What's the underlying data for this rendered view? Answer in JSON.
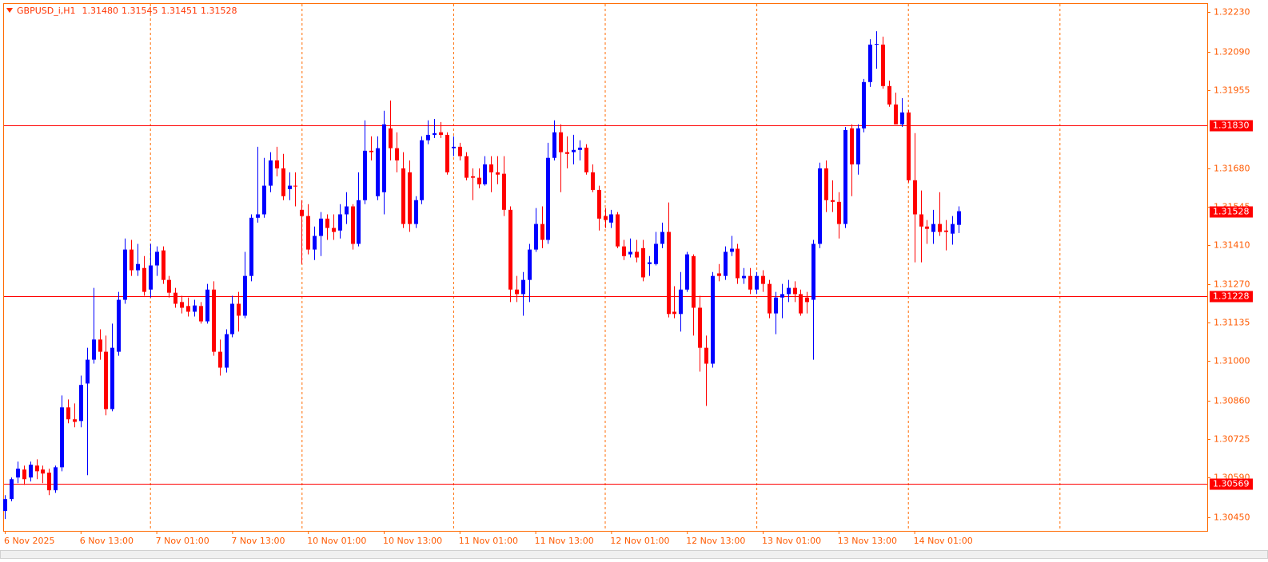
{
  "chart_data": {
    "type": "candlestick",
    "title": "GBPUSD_i,H1",
    "last_bar_labels": [
      "1.31480",
      "1.31545",
      "1.31451",
      "1.31528"
    ],
    "categories": [
      "6 Nov 2025",
      null,
      null,
      null,
      null,
      null,
      null,
      null,
      null,
      null,
      null,
      null,
      "6 Nov 13:00",
      null,
      null,
      null,
      null,
      null,
      null,
      null,
      null,
      null,
      null,
      null,
      "7 Nov 01:00",
      null,
      null,
      null,
      null,
      null,
      null,
      null,
      null,
      null,
      null,
      null,
      "7 Nov 13:00",
      null,
      null,
      null,
      null,
      null,
      null,
      null,
      null,
      null,
      null,
      null,
      "10 Nov 01:00",
      null,
      null,
      null,
      null,
      null,
      null,
      null,
      null,
      null,
      null,
      null,
      "10 Nov 13:00",
      null,
      null,
      null,
      null,
      null,
      null,
      null,
      null,
      null,
      null,
      null,
      "11 Nov 01:00",
      null,
      null,
      null,
      null,
      null,
      null,
      null,
      null,
      null,
      null,
      null,
      "11 Nov 13:00",
      null,
      null,
      null,
      null,
      null,
      null,
      null,
      null,
      null,
      null,
      null,
      "12 Nov 01:00",
      null,
      null,
      null,
      null,
      null,
      null,
      null,
      null,
      null,
      null,
      null,
      "12 Nov 13:00",
      null,
      null,
      null,
      null,
      null,
      null,
      null,
      null,
      null,
      null,
      null,
      "13 Nov 01:00",
      null,
      null,
      null,
      null,
      null,
      null,
      null,
      null,
      null,
      null,
      null,
      "13 Nov 13:00",
      null,
      null,
      null,
      null,
      null,
      null,
      null,
      null,
      null,
      null,
      null,
      "14 Nov 01:00",
      null,
      null,
      null,
      null,
      null,
      null,
      null
    ],
    "open": [
      1.30472,
      1.30514,
      1.3059,
      1.30618,
      1.3059,
      1.30632,
      1.30618,
      1.30607,
      1.30545,
      1.30626,
      1.30837,
      1.30795,
      1.30789,
      1.30921,
      1.31005,
      1.31076,
      1.31033,
      1.30831,
      1.31033,
      1.31216,
      1.31393,
      1.3132,
      1.31328,
      1.31252,
      1.31337,
      1.3139,
      1.31286,
      1.31241,
      1.31208,
      1.31194,
      1.31174,
      1.31194,
      1.3114,
      1.31252,
      1.31033,
      1.30977,
      1.31095,
      1.31202,
      1.3116,
      1.313,
      1.31505,
      1.31517,
      1.31618,
      1.31707,
      1.31679,
      1.31606,
      1.31618,
      1.31533,
      1.31511,
      1.31393,
      1.31441,
      1.31502,
      1.31469,
      1.3146,
      1.31517,
      1.31545,
      1.31413,
      1.31567,
      1.31741,
      1.31581,
      1.31595,
      1.3182,
      1.3175,
      1.31679,
      1.31665,
      1.31483,
      1.31567,
      1.31778,
      1.31797,
      1.31806,
      1.31797,
      1.3175,
      1.31755,
      1.31722,
      1.31651,
      1.31646,
      1.31623,
      1.31693,
      1.31665,
      1.3166,
      1.31533,
      1.31252,
      1.31236,
      1.31286,
      1.31393,
      1.31483,
      1.31427,
      1.31716,
      1.31806,
      1.31736,
      1.31736,
      1.31744,
      1.31752,
      1.31665,
      1.31603,
      1.31511,
      1.31488,
      1.31517,
      1.31404,
      1.31376,
      1.31385,
      1.31398,
      1.31342,
      1.31342,
      1.31413,
      1.31455,
      1.31174,
      1.31166,
      1.31252,
      1.3137,
      1.31188,
      1.31047,
      1.30991,
      1.31309,
      1.313,
      1.31385,
      1.31396,
      1.31292,
      1.313,
      1.31252,
      1.313,
      1.31272,
      1.31168,
      1.31224,
      1.31236,
      1.31258,
      1.31236,
      1.31224,
      1.31216,
      1.31413,
      1.31679,
      1.31567,
      1.31561,
      1.31483,
      1.3182,
      1.31693,
      1.3182,
      1.31983,
      1.32115,
      1.32115,
      1.31969,
      1.31904,
      1.31834,
      1.31876,
      1.31637,
      1.31517,
      1.31474,
      1.31455,
      1.31483,
      1.3146,
      1.31449,
      1.3148
    ],
    "high": [
      1.30528,
      1.3059,
      1.30646,
      1.30632,
      1.30646,
      1.30654,
      1.30632,
      1.30621,
      1.30632,
      1.30879,
      1.30865,
      1.30851,
      1.30949,
      1.31047,
      1.31258,
      1.31112,
      1.3109,
      1.31132,
      1.31244,
      1.31432,
      1.31427,
      1.31413,
      1.3137,
      1.31413,
      1.31404,
      1.31404,
      1.313,
      1.31258,
      1.3123,
      1.31224,
      1.31216,
      1.31208,
      1.31272,
      1.31281,
      1.31076,
      1.31112,
      1.3123,
      1.31244,
      1.31385,
      1.31517,
      1.31755,
      1.31716,
      1.31736,
      1.31755,
      1.3173,
      1.31665,
      1.31665,
      1.31567,
      1.31553,
      1.31474,
      1.31525,
      1.31517,
      1.31517,
      1.31553,
      1.31595,
      1.31553,
      1.31665,
      1.31848,
      1.31792,
      1.31792,
      1.31882,
      1.31918,
      1.31806,
      1.31736,
      1.31707,
      1.31581,
      1.31792,
      1.31848,
      1.31853,
      1.31842,
      1.31806,
      1.31792,
      1.31769,
      1.31736,
      1.31679,
      1.31679,
      1.31722,
      1.31722,
      1.31722,
      1.31722,
      1.31545,
      1.313,
      1.31314,
      1.31413,
      1.31539,
      1.31545,
      1.31769,
      1.31848,
      1.31834,
      1.31792,
      1.31797,
      1.31778,
      1.31764,
      1.31693,
      1.31618,
      1.31539,
      1.31533,
      1.31525,
      1.31427,
      1.31432,
      1.31427,
      1.31427,
      1.3137,
      1.31455,
      1.31488,
      1.31559,
      1.31264,
      1.31314,
      1.31385,
      1.31376,
      1.3123,
      1.3109,
      1.31314,
      1.31342,
      1.31404,
      1.31441,
      1.31413,
      1.31328,
      1.31328,
      1.31314,
      1.3132,
      1.31286,
      1.31244,
      1.31272,
      1.31286,
      1.31281,
      1.31252,
      1.31244,
      1.31427,
      1.31699,
      1.31707,
      1.31637,
      1.31595,
      1.31825,
      1.31834,
      1.31834,
      1.31994,
      1.32134,
      1.32162,
      1.32143,
      1.31988,
      1.31946,
      1.31926,
      1.31884,
      1.31803,
      1.31601,
      1.31497,
      1.31533,
      1.31595,
      1.31497,
      1.31511,
      1.31545
    ],
    "low": [
      1.30444,
      1.30506,
      1.3057,
      1.30564,
      1.30576,
      1.30584,
      1.3057,
      1.30528,
      1.30536,
      1.30612,
      1.30781,
      1.30767,
      1.30767,
      1.30598,
      1.30991,
      1.31005,
      1.30809,
      1.30823,
      1.31019,
      1.31202,
      1.313,
      1.313,
      1.3123,
      1.31224,
      1.313,
      1.31272,
      1.31224,
      1.31188,
      1.31168,
      1.31157,
      1.31157,
      1.31132,
      1.31132,
      1.31019,
      1.30949,
      1.3096,
      1.31084,
      1.31104,
      1.31151,
      1.31281,
      1.31488,
      1.31505,
      1.31595,
      1.31651,
      1.31567,
      1.31567,
      1.31545,
      1.31342,
      1.31376,
      1.31356,
      1.3137,
      1.31427,
      1.31427,
      1.31432,
      1.31483,
      1.31393,
      1.31404,
      1.31553,
      1.31707,
      1.31567,
      1.31517,
      1.31707,
      1.31665,
      1.31469,
      1.31455,
      1.31469,
      1.31553,
      1.31764,
      1.31786,
      1.31786,
      1.31657,
      1.31722,
      1.31707,
      1.31637,
      1.31567,
      1.31609,
      1.31618,
      1.31595,
      1.31623,
      1.31511,
      1.31208,
      1.31208,
      1.3116,
      1.31208,
      1.31385,
      1.31398,
      1.31413,
      1.31707,
      1.31595,
      1.31679,
      1.31693,
      1.31707,
      1.31657,
      1.31595,
      1.3146,
      1.31469,
      1.31469,
      1.31398,
      1.31356,
      1.31365,
      1.31348,
      1.31281,
      1.313,
      1.31337,
      1.31398,
      1.31154,
      1.31151,
      1.31104,
      1.31244,
      1.3109,
      1.30963,
      1.30842,
      1.30977,
      1.31281,
      1.31286,
      1.3137,
      1.31272,
      1.31272,
      1.31236,
      1.31236,
      1.31244,
      1.31151,
      1.31095,
      1.31151,
      1.31208,
      1.31208,
      1.3116,
      1.31168,
      1.31005,
      1.31398,
      1.31525,
      1.31525,
      1.31432,
      1.31469,
      1.31581,
      1.31657,
      1.31806,
      1.31966,
      1.3203,
      1.3196,
      1.31896,
      1.31834,
      1.31825,
      1.31629,
      1.31348,
      1.31348,
      1.31413,
      1.31413,
      1.31441,
      1.3139,
      1.3141,
      1.31451
    ],
    "close": [
      1.30514,
      1.30584,
      1.30621,
      1.30584,
      1.30635,
      1.30612,
      1.30604,
      1.30545,
      1.30626,
      1.30837,
      1.30795,
      1.30786,
      1.30916,
      1.31005,
      1.31076,
      1.31033,
      1.30831,
      1.31047,
      1.31216,
      1.31393,
      1.3132,
      1.31342,
      1.31244,
      1.31337,
      1.31385,
      1.31286,
      1.31241,
      1.31202,
      1.31188,
      1.31174,
      1.31196,
      1.3114,
      1.31252,
      1.31033,
      1.30977,
      1.31095,
      1.31202,
      1.3116,
      1.313,
      1.31505,
      1.31517,
      1.31618,
      1.31707,
      1.31679,
      1.31581,
      1.31618,
      1.31615,
      1.31511,
      1.31393,
      1.31441,
      1.31502,
      1.31469,
      1.31455,
      1.31517,
      1.31545,
      1.31413,
      1.31567,
      1.31741,
      1.31736,
      1.3175,
      1.31834,
      1.3175,
      1.31707,
      1.31483,
      1.31483,
      1.31567,
      1.31778,
      1.31797,
      1.31803,
      1.31797,
      1.31665,
      1.31755,
      1.31722,
      1.31646,
      1.31646,
      1.31623,
      1.31693,
      1.31665,
      1.31657,
      1.31533,
      1.31252,
      1.31236,
      1.31286,
      1.31393,
      1.31483,
      1.31427,
      1.31716,
      1.31806,
      1.31736,
      1.3173,
      1.31744,
      1.31752,
      1.31665,
      1.31603,
      1.31502,
      1.31497,
      1.31517,
      1.31404,
      1.3137,
      1.31385,
      1.31365,
      1.31295,
      1.31348,
      1.31413,
      1.31455,
      1.31166,
      1.31166,
      1.31252,
      1.31376,
      1.31188,
      1.31047,
      1.30991,
      1.313,
      1.313,
      1.31385,
      1.31396,
      1.31292,
      1.313,
      1.31252,
      1.313,
      1.31272,
      1.31168,
      1.31224,
      1.31236,
      1.31258,
      1.31236,
      1.31168,
      1.31208,
      1.31413,
      1.31679,
      1.31567,
      1.31561,
      1.31483,
      1.31814,
      1.31693,
      1.3182,
      1.31983,
      1.32115,
      1.32117,
      1.31969,
      1.31904,
      1.31834,
      1.31876,
      1.31637,
      1.31517,
      1.31474,
      1.31466,
      1.31483,
      1.31455,
      1.31455,
      1.31483,
      1.31528
    ],
    "up_color": "#0000ff",
    "down_color": "#ff0000",
    "ylim": [
      1.30402,
      1.32258
    ],
    "yticks": [
      {
        "value": 1.3223,
        "label": "1.32230"
      },
      {
        "value": 1.3209,
        "label": "1.32090"
      },
      1.31955,
      {
        "value": 1.3168,
        "label": "1.31680"
      },
      1.31545,
      {
        "value": 1.3141,
        "label": "1.31410"
      },
      {
        "value": 1.3127,
        "label": "1.31270"
      },
      1.31135,
      {
        "value": 1.31,
        "label": "1.31000"
      },
      {
        "value": 1.3086,
        "label": "1.30860"
      },
      1.30725,
      {
        "value": 1.3059,
        "label": "1.30590"
      },
      {
        "value": 1.3045,
        "label": "1.30450"
      }
    ],
    "levels": [
      {
        "value": 1.3183,
        "label": "1.31830"
      },
      1.31228,
      1.30569
    ],
    "level_color": "#ff0000",
    "grid": true
  }
}
